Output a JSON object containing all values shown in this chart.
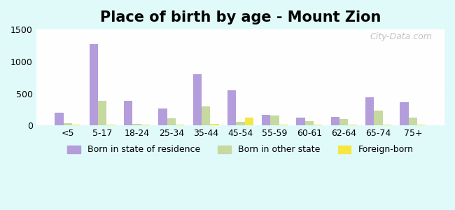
{
  "title": "Place of birth by age - Mount Zion",
  "categories": [
    "<5",
    "5-17",
    "18-24",
    "25-34",
    "35-44",
    "45-54",
    "55-59",
    "60-61",
    "62-64",
    "65-74",
    "75+"
  ],
  "born_in_state": [
    200,
    1270,
    390,
    270,
    800,
    555,
    165,
    120,
    140,
    440,
    370
  ],
  "born_other_state": [
    40,
    390,
    25,
    110,
    305,
    65,
    155,
    75,
    100,
    230,
    130
  ],
  "foreign_born": [
    20,
    20,
    20,
    20,
    30,
    130,
    20,
    15,
    15,
    15,
    20
  ],
  "bar_colors": {
    "born_in_state": "#b39ddb",
    "born_other_state": "#c5d9a0",
    "foreign_born": "#f5e642"
  },
  "ylim": [
    0,
    1500
  ],
  "yticks": [
    0,
    500,
    1000,
    1500
  ],
  "background_color": "#e0fafa",
  "plot_bg_gradient_top": "#e8f5e9",
  "plot_bg_gradient_bottom": "#ffffff",
  "legend_labels": [
    "Born in state of residence",
    "Born in other state",
    "Foreign-born"
  ],
  "watermark": "City-Data.com",
  "title_fontsize": 15,
  "tick_fontsize": 9,
  "legend_fontsize": 9
}
